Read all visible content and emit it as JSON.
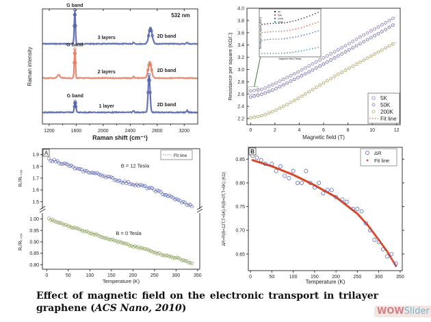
{
  "caption": {
    "text_main": "Effect of magnetic field on the electronic transport in trilayer graphene (",
    "journal": "ACS Nano, 2010",
    "text_end": ")"
  },
  "watermark": {
    "part1": "WOW",
    "part2": "Slider"
  },
  "chart_data": [
    {
      "id": "raman",
      "type": "line",
      "title": "",
      "xlabel": "Raman shift (cm⁻¹)",
      "ylabel": "Raman intensity",
      "xlim": [
        1100,
        3400
      ],
      "xticks": [
        1200,
        1600,
        2000,
        2400,
        2800,
        3200
      ],
      "annotation": "532 nm",
      "series": [
        {
          "name": "3 layers",
          "color": "#4a5aa8",
          "offset": 2,
          "peaks": [
            {
              "x": 1580,
              "h": 1.0,
              "w": 12
            },
            {
              "x": 2700,
              "h": 0.45,
              "w": 35
            },
            {
              "x": 2450,
              "h": 0.05,
              "w": 15
            },
            {
              "x": 3245,
              "h": 0.05,
              "w": 12
            }
          ],
          "labels": {
            "g": "G band",
            "d2": "2D band",
            "layer": "3 layers"
          }
        },
        {
          "name": "2 layers",
          "color": "#e2765a",
          "offset": 1,
          "peaks": [
            {
              "x": 1580,
              "h": 0.85,
              "w": 12
            },
            {
              "x": 2690,
              "h": 0.45,
              "w": 35
            },
            {
              "x": 1340,
              "h": 0.1,
              "w": 25
            },
            {
              "x": 2450,
              "h": 0.04,
              "w": 15
            }
          ],
          "labels": {
            "g": "G band",
            "d2": "2D band",
            "layer": "2 layers"
          }
        },
        {
          "name": "1 layer",
          "color": "#4a5aa8",
          "offset": 0,
          "peaks": [
            {
              "x": 1585,
              "h": 0.32,
              "w": 15
            },
            {
              "x": 2680,
              "h": 1.1,
              "w": 20
            },
            {
              "x": 2450,
              "h": 0.05,
              "w": 15
            },
            {
              "x": 3245,
              "h": 0.05,
              "w": 12
            }
          ],
          "labels": {
            "g": "G band",
            "d2": "2D band",
            "layer": "1 layer"
          }
        }
      ]
    },
    {
      "id": "magnetoresistance",
      "type": "scatter",
      "xlabel": "Magnetic field (T)",
      "ylabel": "Resistance per square (KΩ/□)",
      "xlim": [
        -0.3,
        12.3
      ],
      "ylim": [
        2.1,
        4.0
      ],
      "xticks": [
        0,
        2,
        4,
        6,
        8,
        10,
        12
      ],
      "yticks": [
        2.2,
        2.4,
        2.6,
        2.8,
        3.0,
        3.2,
        3.4,
        3.6,
        3.8,
        4.0
      ],
      "legend": {
        "position": "bottom-right",
        "entries": [
          "5K",
          "50K",
          "200K",
          "Fit line"
        ]
      },
      "series": [
        {
          "name": "5K",
          "color": "#8a7fc0",
          "x": [
            0,
            1,
            2,
            3,
            4,
            5,
            6,
            7,
            8,
            9,
            10,
            11,
            12
          ],
          "y": [
            2.65,
            2.68,
            2.77,
            2.87,
            2.97,
            3.08,
            3.19,
            3.3,
            3.41,
            3.53,
            3.64,
            3.75,
            3.87
          ]
        },
        {
          "name": "50K",
          "color": "#6a6ab8",
          "x": [
            0,
            1,
            2,
            3,
            4,
            5,
            6,
            7,
            8,
            9,
            10,
            11,
            12
          ],
          "y": [
            2.55,
            2.6,
            2.68,
            2.78,
            2.88,
            2.98,
            3.09,
            3.2,
            3.31,
            3.42,
            3.53,
            3.64,
            3.76
          ]
        },
        {
          "name": "200K",
          "color": "#a8a860",
          "x": [
            0,
            1,
            2,
            3,
            4,
            5,
            6,
            7,
            8,
            9,
            10,
            11,
            12
          ],
          "y": [
            2.21,
            2.25,
            2.33,
            2.43,
            2.54,
            2.66,
            2.78,
            2.9,
            3.01,
            3.12,
            3.23,
            3.34,
            3.45
          ]
        }
      ],
      "inset": {
        "xlabel": "Magnetic field (Tesla)",
        "ylabel": "Resistance per square (KΩ/□)",
        "legend": [
          "5K",
          "50K",
          "200K",
          "300K"
        ],
        "colors": [
          "#222222",
          "#e05a30",
          "#3a6ab0",
          "#2a8a8a"
        ]
      }
    },
    {
      "id": "panel-a",
      "type": "scatter",
      "panel_label": "A",
      "xlabel": "Temperature (K)",
      "ylabel_upper": "R_T/R_T=5K",
      "ylabel_lower": "R_T/R_T=5K",
      "xlim": [
        -10,
        355
      ],
      "xticks": [
        0,
        50,
        100,
        150,
        200,
        250,
        300,
        350
      ],
      "upper": {
        "ylim": [
          1.45,
          1.95
        ],
        "yticks": [
          1.5,
          1.6,
          1.7,
          1.8,
          1.9
        ],
        "label": "B = 12 Tesla",
        "color": "#5a6ac0",
        "x": [
          5,
          25,
          50,
          75,
          100,
          125,
          150,
          175,
          200,
          225,
          250,
          275,
          300,
          325,
          340
        ],
        "y": [
          1.86,
          1.84,
          1.81,
          1.77,
          1.75,
          1.73,
          1.7,
          1.67,
          1.65,
          1.63,
          1.6,
          1.56,
          1.52,
          1.48,
          1.46
        ]
      },
      "lower": {
        "ylim": [
          0.78,
          1.02
        ],
        "yticks": [
          0.8,
          0.85,
          0.9,
          0.95,
          1.0
        ],
        "label": "B = 0 Tesla",
        "color": "#8aa860",
        "x": [
          5,
          25,
          50,
          75,
          100,
          125,
          150,
          175,
          200,
          225,
          250,
          275,
          300,
          325,
          340
        ],
        "y": [
          1.0,
          0.985,
          0.97,
          0.955,
          0.94,
          0.925,
          0.91,
          0.895,
          0.88,
          0.87,
          0.855,
          0.84,
          0.83,
          0.815,
          0.8
        ]
      },
      "legend": {
        "position": "top-right",
        "entries": [
          "Fit line"
        ]
      }
    },
    {
      "id": "panel-b",
      "type": "scatter",
      "panel_label": "B",
      "xlabel": "Temperature (K)",
      "ylabel": "ΔR=R(B=12T,T=5K)-R(B=0T,T=5K) (KΩ)",
      "xlim": [
        -5,
        355
      ],
      "ylim": [
        0.615,
        0.875
      ],
      "xticks": [
        0,
        50,
        100,
        150,
        200,
        250,
        300,
        350
      ],
      "yticks": [
        0.65,
        0.7,
        0.75,
        0.8,
        0.85
      ],
      "legend": {
        "position": "top-right",
        "entries": [
          "ΔR",
          "Fit line"
        ]
      },
      "series": [
        {
          "name": "ΔR",
          "color": "#4a5ab0",
          "x": [
            5,
            15,
            25,
            35,
            50,
            60,
            70,
            80,
            90,
            100,
            110,
            120,
            130,
            140,
            150,
            160,
            170,
            180,
            190,
            200,
            215,
            225,
            240,
            250,
            260,
            270,
            280,
            290,
            300,
            310,
            320,
            330,
            340
          ],
          "y": [
            0.857,
            0.853,
            0.848,
            0.84,
            0.84,
            0.825,
            0.835,
            0.815,
            0.81,
            0.825,
            0.8,
            0.8,
            0.825,
            0.8,
            0.79,
            0.8,
            0.778,
            0.785,
            0.785,
            0.77,
            0.765,
            0.76,
            0.745,
            0.745,
            0.74,
            0.715,
            0.7,
            0.68,
            0.675,
            0.66,
            0.645,
            0.65,
            0.63
          ]
        },
        {
          "name": "Fit line",
          "color": "#d9472a",
          "x": [
            5,
            50,
            100,
            150,
            200,
            250,
            275,
            300,
            320,
            340
          ],
          "y": [
            0.848,
            0.835,
            0.817,
            0.795,
            0.77,
            0.735,
            0.71,
            0.68,
            0.655,
            0.625
          ]
        }
      ]
    }
  ]
}
